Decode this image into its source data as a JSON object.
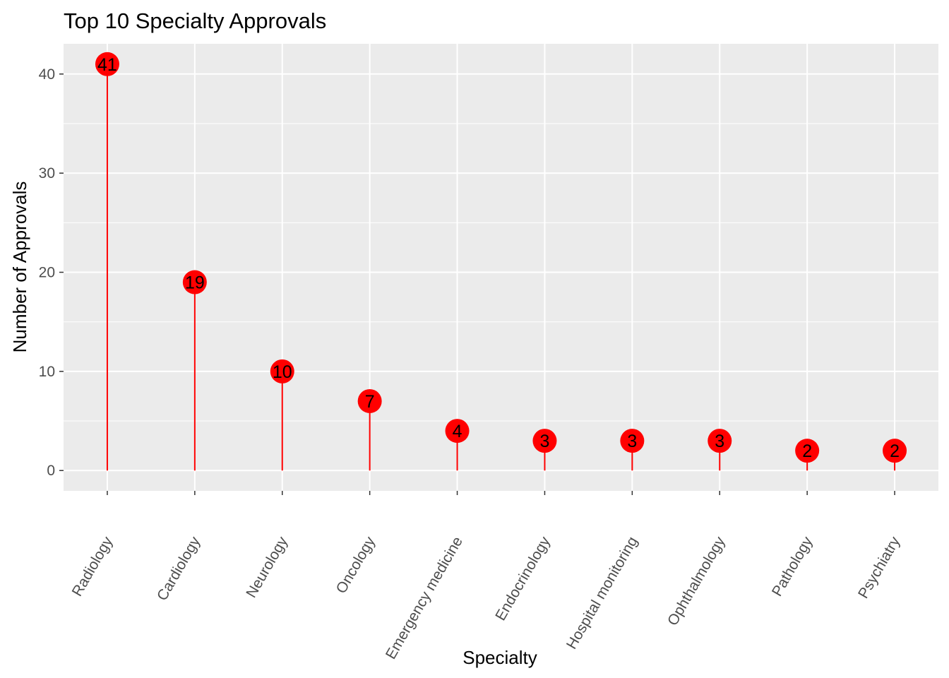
{
  "chart_data": {
    "type": "lollipop",
    "title": "Top 10 Specialty Approvals",
    "xlabel": "Specialty",
    "ylabel": "Number of Approvals",
    "categories": [
      "Radiology",
      "Cardiology",
      "Neurology",
      "Oncology",
      "Emergency medicine",
      "Endocrinology",
      "Hospital monitoring",
      "Ophthalmology",
      "Pathology",
      "Psychiatry"
    ],
    "values": [
      41,
      19,
      10,
      7,
      4,
      3,
      3,
      3,
      2,
      2
    ],
    "yticks": [
      0,
      10,
      20,
      30,
      40
    ],
    "ylim": [
      -2.05,
      43.05
    ],
    "grid": true,
    "legend": "none",
    "colors": {
      "panel": "#ebebeb",
      "grid": "#ffffff",
      "stem": "#ff0000",
      "point": "#ff0000",
      "label": "#000000",
      "tick_text": "#4d4d4d"
    }
  }
}
